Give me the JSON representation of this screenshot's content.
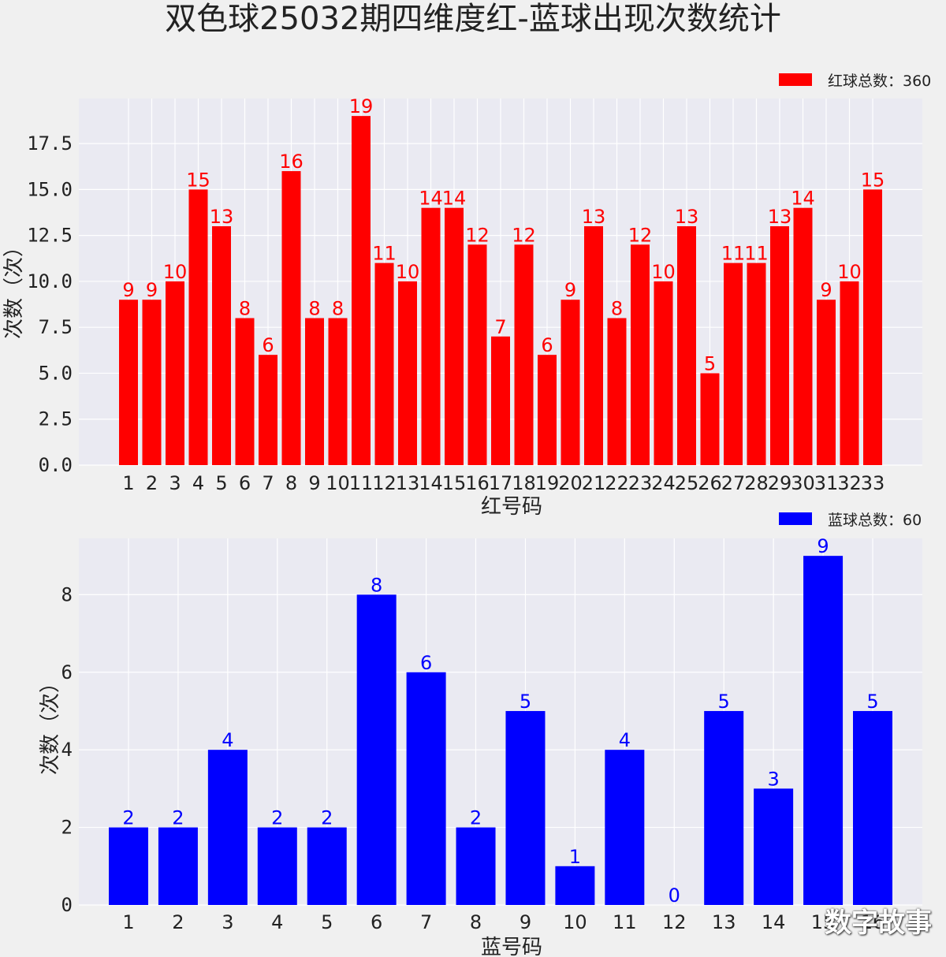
{
  "title": "双色球25032期四维度红-蓝球出现次数统计",
  "watermark": "数字故事",
  "chart_data": [
    {
      "type": "bar",
      "color": "#ff0000",
      "label_color": "#ff0000",
      "legend": "红球总数：360",
      "xlabel": "红号码",
      "ylabel": "次数（次）",
      "ylim": [
        0,
        19.95
      ],
      "yticks": [
        "0.0",
        "2.5",
        "5.0",
        "7.5",
        "10.0",
        "12.5",
        "15.0",
        "17.5"
      ],
      "categories": [
        "1",
        "2",
        "3",
        "4",
        "5",
        "6",
        "7",
        "8",
        "9",
        "10",
        "11",
        "12",
        "13",
        "14",
        "15",
        "16",
        "17",
        "18",
        "19",
        "20",
        "21",
        "22",
        "23",
        "24",
        "25",
        "26",
        "27",
        "28",
        "29",
        "30",
        "31",
        "32",
        "33"
      ],
      "values": [
        9,
        9,
        10,
        15,
        13,
        8,
        6,
        16,
        8,
        8,
        19,
        11,
        10,
        14,
        14,
        12,
        7,
        12,
        6,
        9,
        13,
        8,
        12,
        10,
        13,
        5,
        11,
        11,
        13,
        14,
        9,
        10,
        15
      ]
    },
    {
      "type": "bar",
      "color": "#0000ff",
      "label_color": "#0000ff",
      "legend": "蓝球总数：60",
      "xlabel": "蓝号码",
      "ylabel": "次数（次）",
      "ylim": [
        0,
        9.45
      ],
      "yticks": [
        "0",
        "2",
        "4",
        "6",
        "8"
      ],
      "categories": [
        "1",
        "2",
        "3",
        "4",
        "5",
        "6",
        "7",
        "8",
        "9",
        "10",
        "11",
        "12",
        "13",
        "14",
        "15",
        "16"
      ],
      "values": [
        2,
        2,
        4,
        2,
        2,
        8,
        6,
        2,
        5,
        1,
        4,
        0,
        5,
        3,
        9,
        5
      ]
    }
  ]
}
